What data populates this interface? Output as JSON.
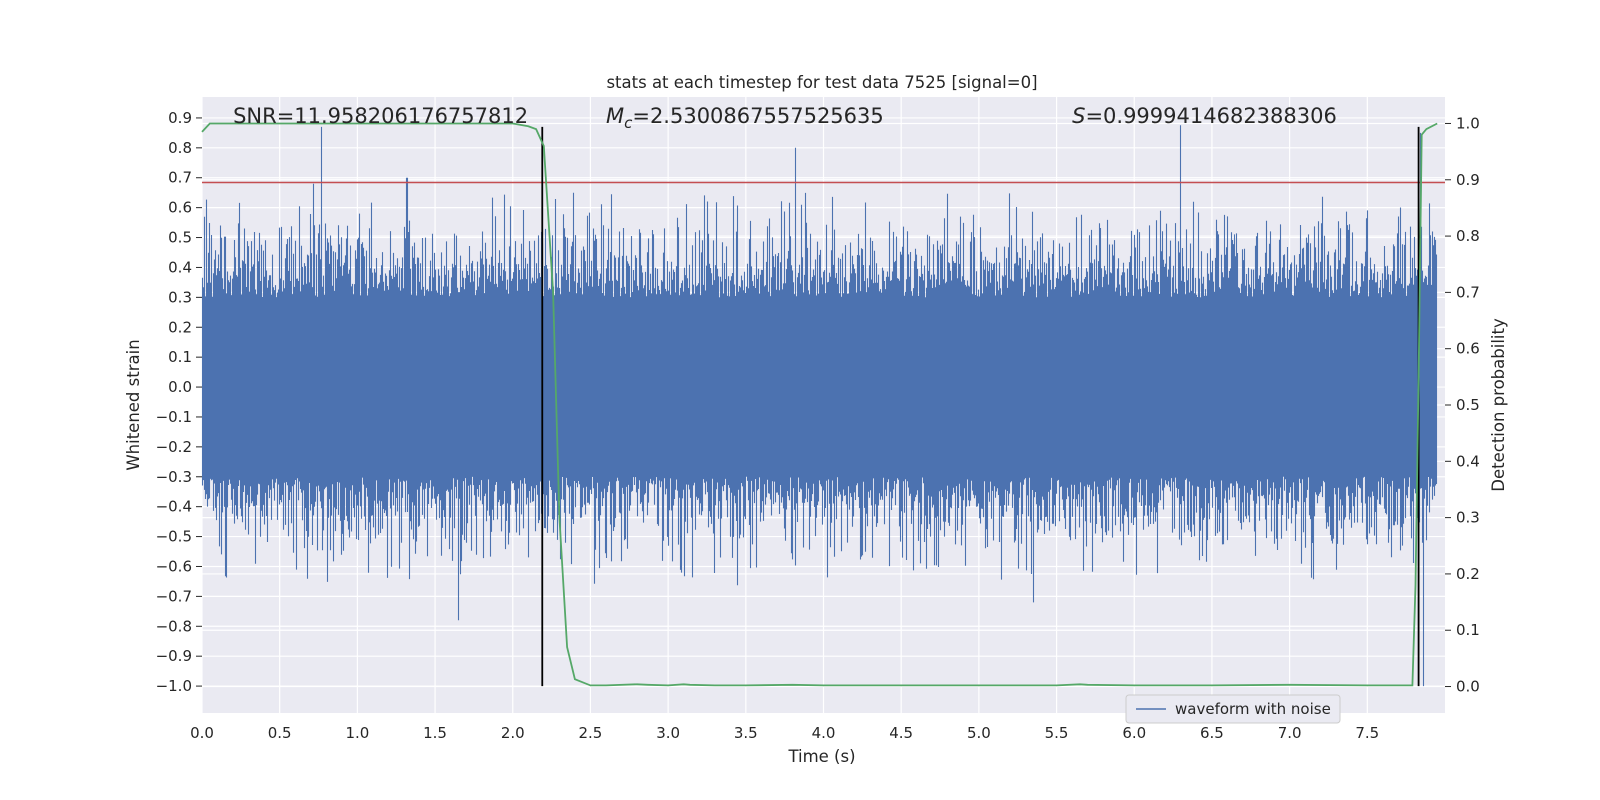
{
  "chart_data": {
    "type": "line",
    "title": "stats at each timestep for test data 7525 [signal=0]",
    "xlabel": "Time (s)",
    "ylabel": "Whitened strain",
    "y2label": "Detection probability",
    "xlim": [
      0.0,
      8.0
    ],
    "ylim": [
      -1.09,
      0.97
    ],
    "y2lim": [
      -0.047,
      1.047
    ],
    "xticks": [
      0.0,
      0.5,
      1.0,
      1.5,
      2.0,
      2.5,
      3.0,
      3.5,
      4.0,
      4.5,
      5.0,
      5.5,
      6.0,
      6.5,
      7.0,
      7.5
    ],
    "xtick_labels": [
      "0.0",
      "0.5",
      "1.0",
      "1.5",
      "2.0",
      "2.5",
      "3.0",
      "3.5",
      "4.0",
      "4.5",
      "5.0",
      "5.5",
      "6.0",
      "6.5",
      "7.0",
      "7.5"
    ],
    "yticks": [
      0.9,
      0.8,
      0.7,
      0.6,
      0.5,
      0.4,
      0.3,
      0.2,
      0.1,
      0.0,
      -0.1,
      -0.2,
      -0.3,
      -0.4,
      -0.5,
      -0.6,
      -0.7,
      -0.8,
      -0.9,
      -1.0
    ],
    "ytick_labels": [
      "0.9",
      "0.8",
      "0.7",
      "0.6",
      "0.5",
      "0.4",
      "0.3",
      "0.2",
      "0.1",
      "0.0",
      "−0.1",
      "−0.2",
      "−0.3",
      "−0.4",
      "−0.5",
      "−0.6",
      "−0.7",
      "−0.8",
      "−0.9",
      "−1.0"
    ],
    "y2ticks": [
      1.0,
      0.9,
      0.8,
      0.7,
      0.6,
      0.5,
      0.4,
      0.3,
      0.2,
      0.1,
      0.0
    ],
    "y2tick_labels": [
      "1.0",
      "0.9",
      "0.8",
      "0.7",
      "0.6",
      "0.5",
      "0.4",
      "0.3",
      "0.2",
      "0.1",
      "0.0"
    ],
    "grid": true,
    "legend": {
      "entries": [
        "waveform with noise"
      ],
      "placement": "lower-right"
    },
    "series": [
      {
        "name": "waveform with noise",
        "color": "#4c72b0",
        "kind": "noise",
        "sample_rate_hz": 2048,
        "duration_s": 8.0,
        "typical_envelope": [
          -0.3,
          0.3
        ],
        "max": 0.87,
        "min": -1.0,
        "notable_peaks": [
          [
            0.77,
            0.87
          ],
          [
            0.72,
            0.68
          ],
          [
            1.32,
            0.7
          ],
          [
            1.65,
            -0.78
          ],
          [
            3.82,
            0.8
          ],
          [
            5.35,
            -0.72
          ],
          [
            7.86,
            -1.0
          ],
          [
            7.84,
            0.85
          ]
        ]
      },
      {
        "name": "Detection probability",
        "color": "#55a868",
        "axis": "right",
        "x": [
          0.0,
          0.05,
          0.1,
          0.5,
          1.0,
          1.5,
          2.0,
          2.1,
          2.15,
          2.2,
          2.26,
          2.3,
          2.35,
          2.4,
          2.5,
          2.6,
          2.8,
          2.87,
          3.0,
          3.1,
          3.14,
          3.3,
          3.5,
          3.8,
          4.0,
          4.5,
          5.0,
          5.5,
          5.65,
          5.7,
          6.0,
          6.5,
          7.0,
          7.5,
          7.79,
          7.81,
          7.83,
          7.85,
          7.88,
          7.95
        ],
        "y": [
          0.985,
          1.0,
          1.0,
          1.0,
          1.0,
          1.0,
          1.0,
          0.995,
          0.99,
          0.96,
          0.7,
          0.3,
          0.07,
          0.013,
          0.002,
          0.002,
          0.004,
          0.003,
          0.002,
          0.004,
          0.003,
          0.002,
          0.002,
          0.003,
          0.002,
          0.002,
          0.002,
          0.002,
          0.004,
          0.003,
          0.002,
          0.002,
          0.003,
          0.002,
          0.002,
          0.18,
          0.55,
          0.98,
          0.99,
          1.0
        ]
      }
    ],
    "hlines": [
      {
        "y": 0.684,
        "color": "#c44e52",
        "axis": "left"
      }
    ],
    "vlines": [
      {
        "x": 2.19,
        "ymin": -1.0,
        "ymax": 0.87,
        "color": "#000000"
      },
      {
        "x": 7.83,
        "ymin": -1.0,
        "ymax": 0.87,
        "color": "#000000"
      }
    ],
    "annotations": [
      {
        "name": "snr",
        "text": "SNR=11.958206176757812",
        "x": 0.2
      },
      {
        "name": "chirp-mass",
        "prefix": "M",
        "sub": "c",
        "text": "=2.5300867557525635",
        "x": 2.6
      },
      {
        "name": "score",
        "prefix": "S",
        "text": "=0.9999414682388306",
        "x": 5.6
      }
    ]
  }
}
